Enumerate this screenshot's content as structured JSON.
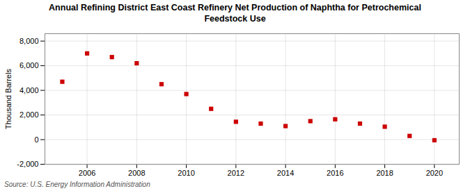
{
  "chart_data": {
    "type": "scatter",
    "title": "Annual Refining District East Coast Refinery Net Production of Naphtha for Petrochemical\nFeedstock Use",
    "ylabel": "Thousand Barrels",
    "annotation": "Source: U.S. Energy Information Administration",
    "x": [
      2005,
      2006,
      2007,
      2008,
      2009,
      2010,
      2011,
      2012,
      2013,
      2014,
      2015,
      2016,
      2017,
      2018,
      2019,
      2020
    ],
    "values": [
      4700,
      7000,
      6700,
      6200,
      4500,
      3700,
      2500,
      1450,
      1300,
      1100,
      1500,
      1650,
      1300,
      1050,
      300,
      -50
    ],
    "color": "#cc0000",
    "marker": "square",
    "xlim": [
      2004.3,
      2021.0
    ],
    "xticks": [
      2006,
      2008,
      2010,
      2012,
      2014,
      2016,
      2018,
      2020
    ],
    "ylim": [
      -2000,
      8600
    ],
    "yticks": [
      {
        "value": -2000,
        "label": "-2,000"
      },
      0,
      {
        "value": 2000,
        "label": "2,000"
      },
      {
        "value": 4000,
        "label": "4,000"
      },
      {
        "value": 6000,
        "label": "6,000"
      },
      {
        "value": 8000,
        "label": "8,000"
      }
    ],
    "grid": true
  }
}
